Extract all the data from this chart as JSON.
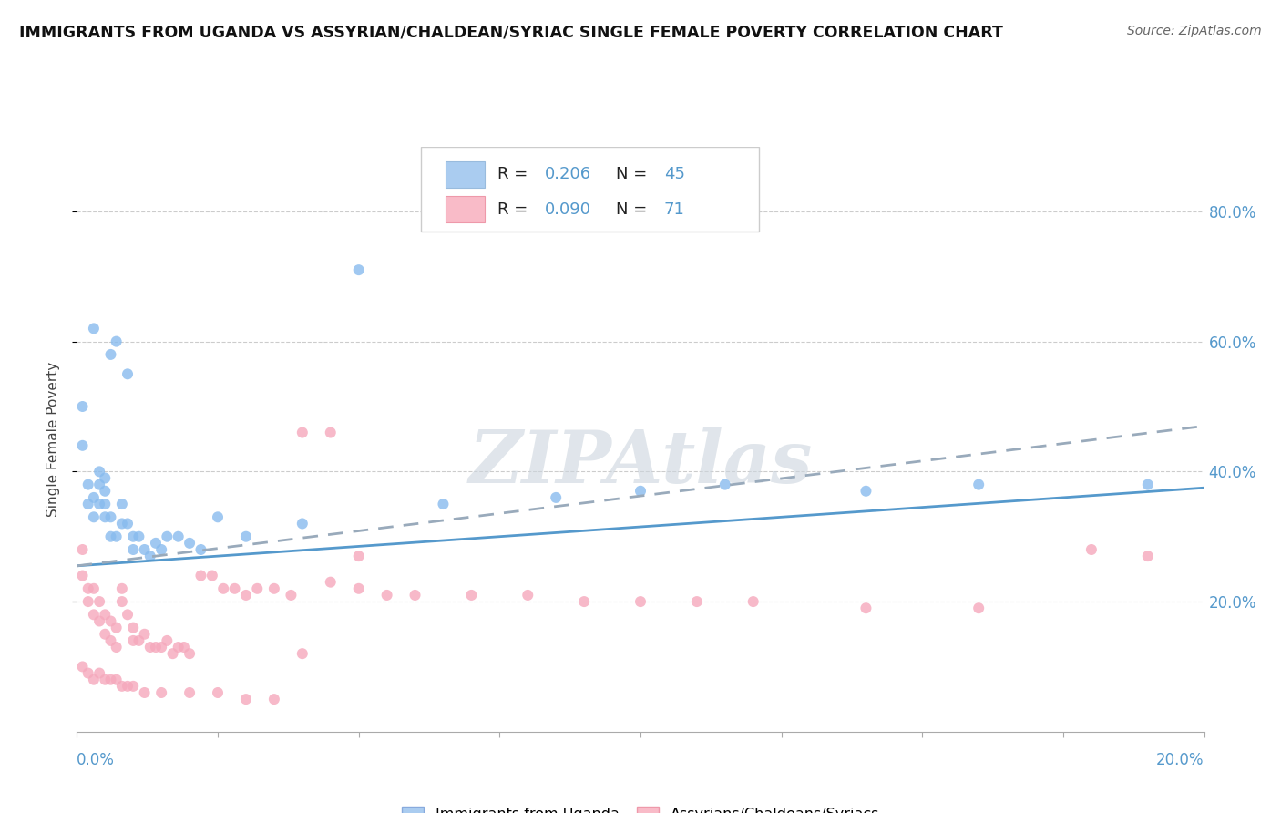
{
  "title": "IMMIGRANTS FROM UGANDA VS ASSYRIAN/CHALDEAN/SYRIAC SINGLE FEMALE POVERTY CORRELATION CHART",
  "source": "Source: ZipAtlas.com",
  "ylabel": "Single Female Poverty",
  "ylabel_right_ticks": [
    "20.0%",
    "40.0%",
    "60.0%",
    "80.0%"
  ],
  "ylabel_right_vals": [
    0.2,
    0.4,
    0.6,
    0.8
  ],
  "legend1_r": "0.206",
  "legend1_n": "45",
  "legend2_r": "0.090",
  "legend2_n": "71",
  "legend1_color": "#aaccf0",
  "legend2_color": "#f9bbc8",
  "blue_scatter_color": "#88bbee",
  "pink_scatter_color": "#f5a8bc",
  "blue_line_color": "#5599cc",
  "gray_dashed_color": "#99aabb",
  "watermark": "ZIPAtlas",
  "watermark_color": "#ccd5de",
  "background_color": "#ffffff",
  "title_fontsize": 12.5,
  "xlim": [
    0.0,
    0.2
  ],
  "ylim": [
    0.0,
    0.9
  ],
  "blue_scatter_x": [
    0.001,
    0.001,
    0.002,
    0.002,
    0.003,
    0.003,
    0.003,
    0.004,
    0.004,
    0.004,
    0.005,
    0.005,
    0.005,
    0.005,
    0.006,
    0.006,
    0.006,
    0.007,
    0.007,
    0.008,
    0.008,
    0.009,
    0.009,
    0.01,
    0.01,
    0.011,
    0.012,
    0.013,
    0.014,
    0.015,
    0.016,
    0.018,
    0.02,
    0.022,
    0.025,
    0.03,
    0.04,
    0.05,
    0.065,
    0.085,
    0.1,
    0.115,
    0.14,
    0.16,
    0.19
  ],
  "blue_scatter_y": [
    0.44,
    0.5,
    0.35,
    0.38,
    0.36,
    0.62,
    0.33,
    0.35,
    0.38,
    0.4,
    0.33,
    0.35,
    0.37,
    0.39,
    0.3,
    0.33,
    0.58,
    0.6,
    0.3,
    0.32,
    0.35,
    0.32,
    0.55,
    0.28,
    0.3,
    0.3,
    0.28,
    0.27,
    0.29,
    0.28,
    0.3,
    0.3,
    0.29,
    0.28,
    0.33,
    0.3,
    0.32,
    0.71,
    0.35,
    0.36,
    0.37,
    0.38,
    0.37,
    0.38,
    0.38
  ],
  "pink_scatter_x": [
    0.001,
    0.001,
    0.002,
    0.002,
    0.003,
    0.003,
    0.004,
    0.004,
    0.005,
    0.005,
    0.006,
    0.006,
    0.007,
    0.007,
    0.008,
    0.008,
    0.009,
    0.01,
    0.01,
    0.011,
    0.012,
    0.013,
    0.014,
    0.015,
    0.016,
    0.017,
    0.018,
    0.019,
    0.02,
    0.022,
    0.024,
    0.026,
    0.028,
    0.03,
    0.032,
    0.035,
    0.038,
    0.04,
    0.045,
    0.05,
    0.055,
    0.06,
    0.07,
    0.08,
    0.09,
    0.1,
    0.11,
    0.12,
    0.14,
    0.16,
    0.18,
    0.001,
    0.002,
    0.003,
    0.004,
    0.005,
    0.006,
    0.007,
    0.008,
    0.009,
    0.01,
    0.012,
    0.015,
    0.02,
    0.025,
    0.03,
    0.035,
    0.04,
    0.045,
    0.05,
    0.19
  ],
  "pink_scatter_y": [
    0.24,
    0.28,
    0.2,
    0.22,
    0.18,
    0.22,
    0.17,
    0.2,
    0.15,
    0.18,
    0.14,
    0.17,
    0.13,
    0.16,
    0.2,
    0.22,
    0.18,
    0.14,
    0.16,
    0.14,
    0.15,
    0.13,
    0.13,
    0.13,
    0.14,
    0.12,
    0.13,
    0.13,
    0.12,
    0.24,
    0.24,
    0.22,
    0.22,
    0.21,
    0.22,
    0.22,
    0.21,
    0.12,
    0.23,
    0.22,
    0.21,
    0.21,
    0.21,
    0.21,
    0.2,
    0.2,
    0.2,
    0.2,
    0.19,
    0.19,
    0.28,
    0.1,
    0.09,
    0.08,
    0.09,
    0.08,
    0.08,
    0.08,
    0.07,
    0.07,
    0.07,
    0.06,
    0.06,
    0.06,
    0.06,
    0.05,
    0.05,
    0.46,
    0.46,
    0.27,
    0.27
  ],
  "blue_trend_x": [
    0.0,
    0.2
  ],
  "blue_trend_y": [
    0.255,
    0.375
  ],
  "gray_trend_x": [
    0.0,
    0.2
  ],
  "gray_trend_y": [
    0.255,
    0.47
  ]
}
